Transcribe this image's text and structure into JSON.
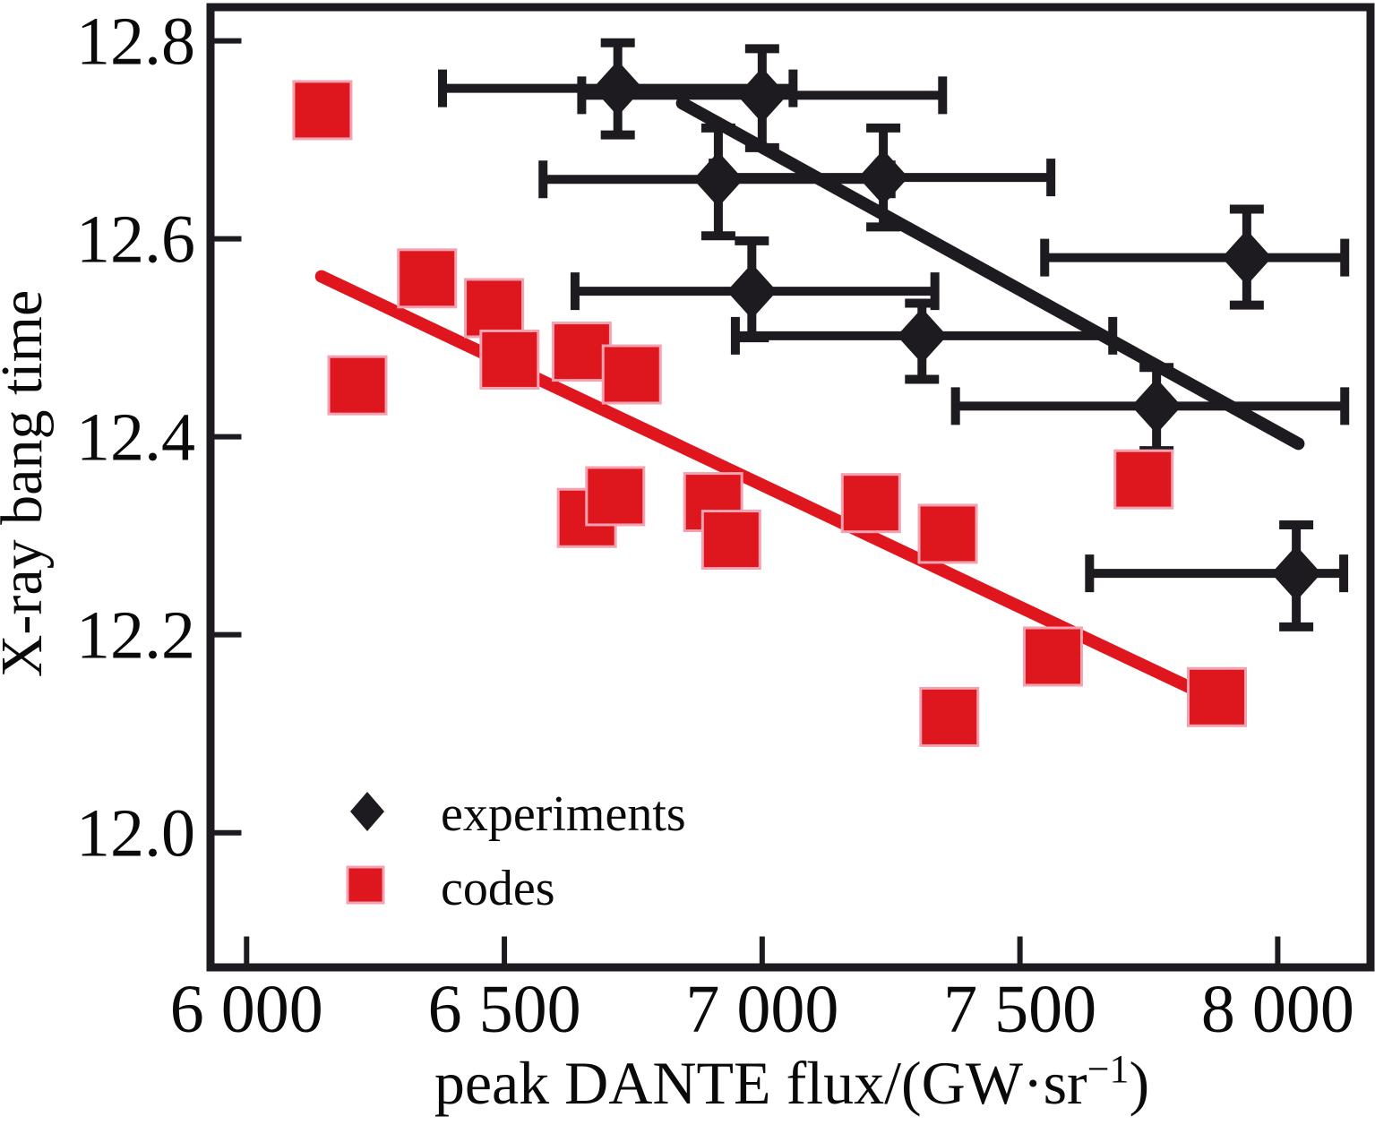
{
  "chart_data": {
    "type": "scatter",
    "title": "",
    "xlabel": "peak DANTE flux/(GW·sr⁻¹)",
    "xlabel_parts": {
      "main": "peak DANTE flux/(GW·sr",
      "sup": "−1",
      "close": ")"
    },
    "ylabel": "X-ray bang time",
    "xlim": [
      5930,
      8180
    ],
    "ylim": [
      11.864,
      12.834
    ],
    "grid": false,
    "background_color": "#ffffff",
    "axis_color": "#1d1b20",
    "x_ticks": {
      "values": [
        6000,
        6500,
        7000,
        7500,
        8000
      ],
      "labels": [
        "6 000",
        "6 500",
        "7 000",
        "7 500",
        "8 000"
      ]
    },
    "y_ticks": {
      "values": [
        12.0,
        12.2,
        12.4,
        12.6,
        12.8
      ],
      "labels": [
        "12.0",
        "12.2",
        "12.4",
        "12.6",
        "12.8"
      ]
    },
    "legend": {
      "position": "inside-bottom-left",
      "items": [
        {
          "label": "experiments",
          "marker": "diamond",
          "color": "#1d1b20"
        },
        {
          "label": "codes",
          "marker": "square",
          "color": "#de161e"
        }
      ]
    },
    "series": [
      {
        "name": "experiments",
        "marker": "diamond",
        "color": "#1d1b20",
        "points": [
          {
            "x": 6720,
            "y": 12.752,
            "xlo": 6380,
            "xhi": 7060,
            "ylo": 12.705,
            "yhi": 12.798
          },
          {
            "x": 7000,
            "y": 12.745,
            "xlo": 6650,
            "xhi": 7350,
            "ylo": 12.692,
            "yhi": 12.792
          },
          {
            "x": 6915,
            "y": 12.66,
            "xlo": 6575,
            "xhi": 7250,
            "ylo": 12.603,
            "yhi": 12.712
          },
          {
            "x": 7235,
            "y": 12.662,
            "xlo": 6905,
            "xhi": 7560,
            "ylo": 12.612,
            "yhi": 12.712
          },
          {
            "x": 6980,
            "y": 12.547,
            "xlo": 6637,
            "xhi": 7335,
            "ylo": 12.5,
            "yhi": 12.598
          },
          {
            "x": 7310,
            "y": 12.502,
            "xlo": 6948,
            "xhi": 7680,
            "ylo": 12.458,
            "yhi": 12.535
          },
          {
            "x": 7940,
            "y": 12.581,
            "xlo": 7548,
            "xhi": 8130,
            "ylo": 12.533,
            "yhi": 12.63
          },
          {
            "x": 7765,
            "y": 12.431,
            "xlo": 7375,
            "xhi": 8130,
            "ylo": 12.386,
            "yhi": 12.47
          },
          {
            "x": 8036,
            "y": 12.262,
            "xlo": 7635,
            "xhi": 8128,
            "ylo": 12.208,
            "yhi": 12.311
          }
        ]
      },
      {
        "name": "codes",
        "marker": "square",
        "color": "#de161e",
        "edge_color": "#f2a2b0",
        "points": [
          {
            "x": 6147,
            "y": 12.73
          },
          {
            "x": 6215,
            "y": 12.452
          },
          {
            "x": 6350,
            "y": 12.56
          },
          {
            "x": 6480,
            "y": 12.53
          },
          {
            "x": 6510,
            "y": 12.478
          },
          {
            "x": 6650,
            "y": 12.486
          },
          {
            "x": 6747,
            "y": 12.463
          },
          {
            "x": 6660,
            "y": 12.318
          },
          {
            "x": 6715,
            "y": 12.34
          },
          {
            "x": 6905,
            "y": 12.334
          },
          {
            "x": 6940,
            "y": 12.296
          },
          {
            "x": 7211,
            "y": 12.333
          },
          {
            "x": 7360,
            "y": 12.302
          },
          {
            "x": 7363,
            "y": 12.117
          },
          {
            "x": 7564,
            "y": 12.178
          },
          {
            "x": 7740,
            "y": 12.357
          },
          {
            "x": 7882,
            "y": 12.137
          }
        ]
      }
    ],
    "trend_lines": [
      {
        "series": "experiments",
        "color": "#1d1b20",
        "from": {
          "x": 6845,
          "y": 12.737
        },
        "to": {
          "x": 8040,
          "y": 12.393
        }
      },
      {
        "series": "codes",
        "color": "#e0161f",
        "from": {
          "x": 6145,
          "y": 12.562
        },
        "to": {
          "x": 7845,
          "y": 12.143
        }
      }
    ]
  }
}
